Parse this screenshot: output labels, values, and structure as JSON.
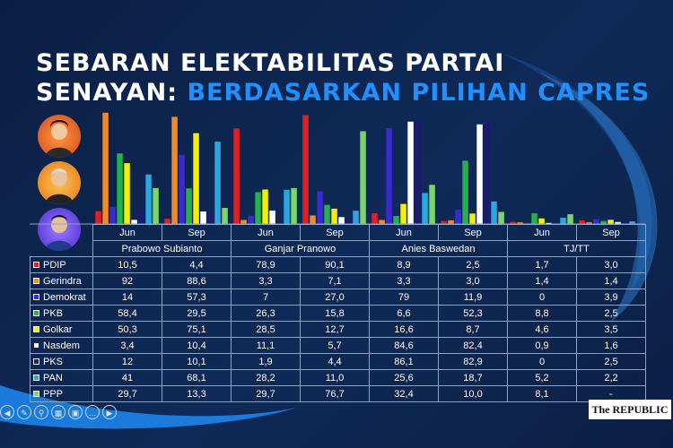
{
  "title_line1": "SEBARAN ELEKTABILITAS PARTAI",
  "title_line2_white": "SENAYAN:",
  "title_line2_accent": "BERDASARKAN PILIHAN CAPRES",
  "logo_text": "The REPUBLIC",
  "colors": {
    "background": "#0d2248",
    "accent": "#1e90ff"
  },
  "chart_data": {
    "type": "bar",
    "groups": [
      "Prabowo Subianto",
      "Ganjar Pranowo",
      "Anies Baswedan",
      "TJ/TT"
    ],
    "periods": [
      "Jun",
      "Sep"
    ],
    "parties": [
      "PDIP",
      "Gerindra",
      "Demokrat",
      "PKB",
      "Golkar",
      "Nasdem",
      "PKS",
      "PAN",
      "PPP"
    ],
    "party_colors": [
      "#e02020",
      "#f08a24",
      "#3a2ad0",
      "#22b14c",
      "#f5f000",
      "#ffffff",
      "#1a1a6e",
      "#29a8e0",
      "#7bd66a"
    ],
    "display_values": [
      [
        "10,5",
        "4,4",
        "78,9",
        "90,1",
        "8,9",
        "2,5",
        "1,7",
        "3,0"
      ],
      [
        "92",
        "88,6",
        "3,3",
        "7,1",
        "3,3",
        "3,0",
        "1,4",
        "1,4"
      ],
      [
        "14",
        "57,3",
        "7",
        "27,0",
        "79",
        "11,9",
        "0",
        "3,9"
      ],
      [
        "58,4",
        "29,5",
        "26,3",
        "15,8",
        "6,6",
        "52,3",
        "8,8",
        "2,5"
      ],
      [
        "50,3",
        "75,1",
        "28,5",
        "12,7",
        "16,6",
        "8,7",
        "4,6",
        "3,5"
      ],
      [
        "3,4",
        "10,4",
        "11,1",
        "5,7",
        "84,6",
        "82,4",
        "0,9",
        "1,6"
      ],
      [
        "12",
        "10,1",
        "1,9",
        "4,4",
        "86,1",
        "82,9",
        "0",
        "2,5"
      ],
      [
        "41",
        "68,1",
        "28,2",
        "11,0",
        "25,6",
        "18,7",
        "5,2",
        "2,2"
      ],
      [
        "29,7",
        "13,3",
        "29,7",
        "76,7",
        "32,4",
        "10,0",
        "8,1",
        "-"
      ]
    ],
    "values": [
      [
        10.5,
        4.4,
        78.9,
        90.1,
        8.9,
        2.5,
        1.7,
        3.0
      ],
      [
        92,
        88.6,
        3.3,
        7.1,
        3.3,
        3.0,
        1.4,
        1.4
      ],
      [
        14,
        57.3,
        7,
        27.0,
        79,
        11.9,
        0,
        3.9
      ],
      [
        58.4,
        29.5,
        26.3,
        15.8,
        6.6,
        52.3,
        8.8,
        2.5
      ],
      [
        50.3,
        75.1,
        28.5,
        12.7,
        16.6,
        8.7,
        4.6,
        3.5
      ],
      [
        3.4,
        10.4,
        11.1,
        5.7,
        84.6,
        82.4,
        0.9,
        1.6
      ],
      [
        12,
        10.1,
        1.9,
        4.4,
        86.1,
        82.9,
        0,
        2.5
      ],
      [
        41,
        68.1,
        28.2,
        11.0,
        25.6,
        18.7,
        5.2,
        2.2
      ],
      [
        29.7,
        13.3,
        29.7,
        76.7,
        32.4,
        10.0,
        8.1,
        null
      ]
    ],
    "ylim": [
      0,
      100
    ],
    "grid": false,
    "legend": "table-below"
  }
}
